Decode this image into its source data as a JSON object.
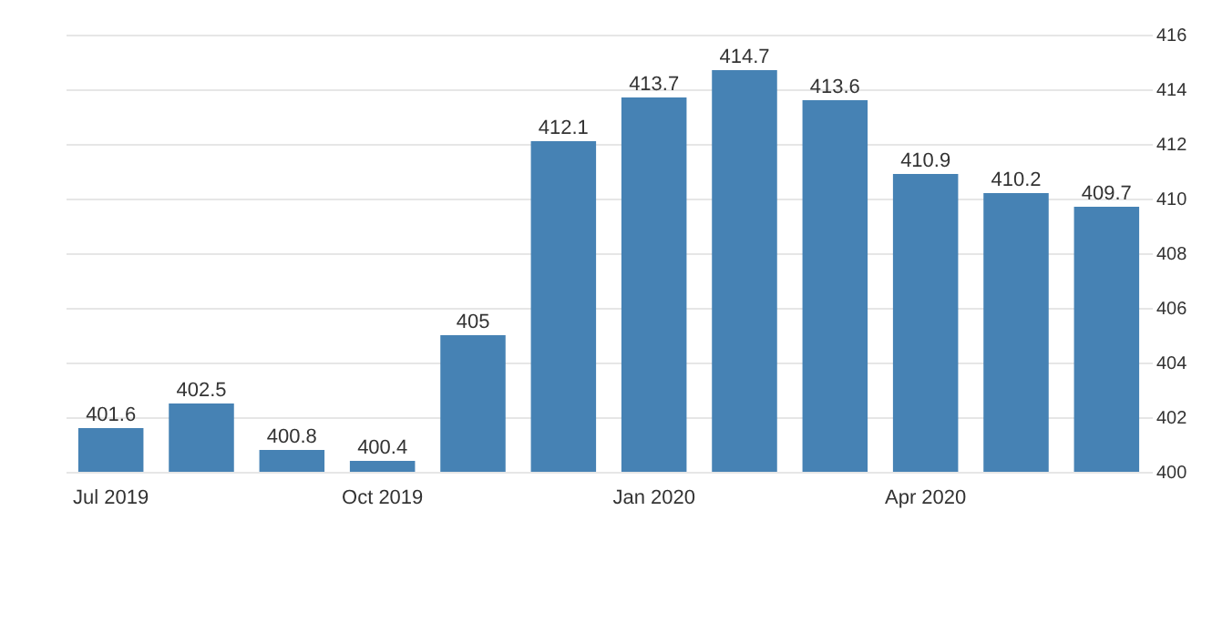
{
  "chart_data": {
    "type": "bar",
    "categories": [
      "Jul 2019",
      null,
      null,
      "Oct 2019",
      null,
      null,
      "Jan 2020",
      null,
      null,
      "Apr 2020",
      null,
      null
    ],
    "values": [
      401.6,
      402.5,
      400.8,
      400.4,
      405,
      412.1,
      413.7,
      414.7,
      413.6,
      410.9,
      410.2,
      409.7
    ],
    "color": "#4682b4",
    "ylim": [
      400,
      416
    ],
    "yticks": [
      400,
      402,
      404,
      406,
      408,
      410,
      412,
      414,
      416
    ],
    "grid": "y",
    "data_labels": true
  }
}
